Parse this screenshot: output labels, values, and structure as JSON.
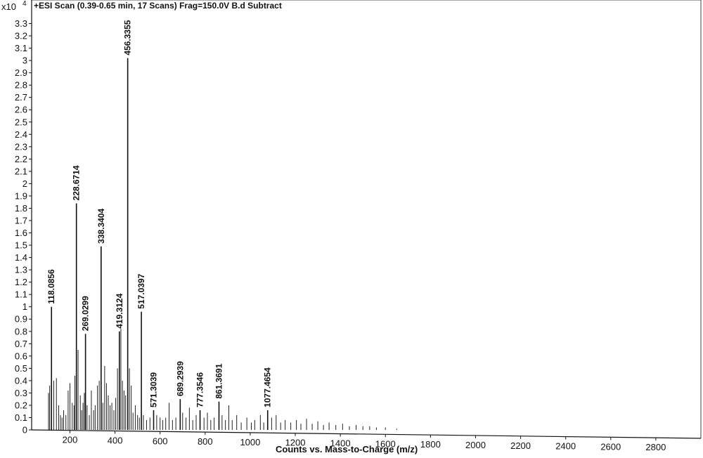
{
  "chart_data": {
    "type": "line",
    "title": "+ESI Scan (0.39-0.65 min, 17 Scans) Frag=150.0V B.d  Subtract",
    "y_multiplier": "x10",
    "y_exponent": "4",
    "xlabel": "Counts vs. Mass-to-Charge (m/z)",
    "ylabel": "",
    "xlim": [
      30,
      3000
    ],
    "ylim": [
      0,
      3.4
    ],
    "x_ticks": [
      200,
      400,
      600,
      800,
      1000,
      1200,
      1400,
      1600,
      1800,
      2000,
      2200,
      2400,
      2600,
      2800
    ],
    "y_ticks": [
      0,
      0.1,
      0.2,
      0.3,
      0.4,
      0.5,
      0.6,
      0.7,
      0.8,
      0.9,
      1,
      1.1,
      1.2,
      1.3,
      1.4,
      1.5,
      1.6,
      1.7,
      1.8,
      1.9,
      2,
      2.1,
      2.2,
      2.3,
      2.4,
      2.5,
      2.6,
      2.7,
      2.8,
      2.9,
      3,
      3.1,
      3.2,
      3.3
    ],
    "grid": false,
    "labeled_peaks": [
      {
        "label": "118.0856",
        "x": 118.0856,
        "y": 1.0
      },
      {
        "label": "228.6714",
        "x": 228.6714,
        "y": 1.84
      },
      {
        "label": "269.0299",
        "x": 269.0299,
        "y": 0.78
      },
      {
        "label": "338.3404",
        "x": 338.3404,
        "y": 1.49
      },
      {
        "label": "419.3124",
        "x": 419.3124,
        "y": 0.8
      },
      {
        "label": "456.3355",
        "x": 456.3355,
        "y": 3.02
      },
      {
        "label": "517.0397",
        "x": 517.0397,
        "y": 0.96
      },
      {
        "label": "571.3039",
        "x": 571.3039,
        "y": 0.16
      },
      {
        "label": "689.2939",
        "x": 689.2939,
        "y": 0.25
      },
      {
        "label": "777.3546",
        "x": 777.3546,
        "y": 0.16
      },
      {
        "label": "861.3691",
        "x": 861.3691,
        "y": 0.23
      },
      {
        "label": "1077.4654",
        "x": 1077.4654,
        "y": 0.16
      }
    ],
    "minor_peaks": [
      {
        "x": 105,
        "y": 0.3
      },
      {
        "x": 110,
        "y": 0.36
      },
      {
        "x": 128,
        "y": 0.4
      },
      {
        "x": 140,
        "y": 0.42
      },
      {
        "x": 150,
        "y": 0.2
      },
      {
        "x": 158,
        "y": 0.12
      },
      {
        "x": 165,
        "y": 0.1
      },
      {
        "x": 172,
        "y": 0.16
      },
      {
        "x": 182,
        "y": 0.12
      },
      {
        "x": 192,
        "y": 0.32
      },
      {
        "x": 200,
        "y": 0.38
      },
      {
        "x": 210,
        "y": 0.22
      },
      {
        "x": 218,
        "y": 0.2
      },
      {
        "x": 222,
        "y": 0.44
      },
      {
        "x": 236,
        "y": 0.65
      },
      {
        "x": 246,
        "y": 0.28
      },
      {
        "x": 252,
        "y": 0.16
      },
      {
        "x": 258,
        "y": 0.22
      },
      {
        "x": 264,
        "y": 0.3
      },
      {
        "x": 276,
        "y": 0.2
      },
      {
        "x": 286,
        "y": 0.12
      },
      {
        "x": 295,
        "y": 0.32
      },
      {
        "x": 305,
        "y": 0.16
      },
      {
        "x": 312,
        "y": 0.2
      },
      {
        "x": 322,
        "y": 0.36
      },
      {
        "x": 330,
        "y": 0.4
      },
      {
        "x": 346,
        "y": 0.22
      },
      {
        "x": 354,
        "y": 0.52
      },
      {
        "x": 362,
        "y": 0.38
      },
      {
        "x": 370,
        "y": 0.28
      },
      {
        "x": 378,
        "y": 0.2
      },
      {
        "x": 386,
        "y": 0.22
      },
      {
        "x": 395,
        "y": 0.16
      },
      {
        "x": 403,
        "y": 0.26
      },
      {
        "x": 411,
        "y": 0.5
      },
      {
        "x": 426,
        "y": 0.82
      },
      {
        "x": 433,
        "y": 0.4
      },
      {
        "x": 440,
        "y": 0.32
      },
      {
        "x": 447,
        "y": 0.28
      },
      {
        "x": 464,
        "y": 0.5
      },
      {
        "x": 472,
        "y": 0.36
      },
      {
        "x": 480,
        "y": 0.14
      },
      {
        "x": 490,
        "y": 0.2
      },
      {
        "x": 500,
        "y": 0.12
      },
      {
        "x": 508,
        "y": 0.1
      },
      {
        "x": 526,
        "y": 0.12
      },
      {
        "x": 540,
        "y": 0.08
      },
      {
        "x": 555,
        "y": 0.1
      },
      {
        "x": 585,
        "y": 0.12
      },
      {
        "x": 600,
        "y": 0.1
      },
      {
        "x": 612,
        "y": 0.08
      },
      {
        "x": 625,
        "y": 0.1
      },
      {
        "x": 640,
        "y": 0.22
      },
      {
        "x": 655,
        "y": 0.08
      },
      {
        "x": 670,
        "y": 0.1
      },
      {
        "x": 700,
        "y": 0.14
      },
      {
        "x": 715,
        "y": 0.1
      },
      {
        "x": 730,
        "y": 0.18
      },
      {
        "x": 745,
        "y": 0.08
      },
      {
        "x": 760,
        "y": 0.12
      },
      {
        "x": 795,
        "y": 0.1
      },
      {
        "x": 810,
        "y": 0.14
      },
      {
        "x": 825,
        "y": 0.08
      },
      {
        "x": 840,
        "y": 0.1
      },
      {
        "x": 875,
        "y": 0.12
      },
      {
        "x": 890,
        "y": 0.08
      },
      {
        "x": 905,
        "y": 0.2
      },
      {
        "x": 920,
        "y": 0.08
      },
      {
        "x": 940,
        "y": 0.12
      },
      {
        "x": 960,
        "y": 0.06
      },
      {
        "x": 985,
        "y": 0.1
      },
      {
        "x": 1005,
        "y": 0.06
      },
      {
        "x": 1020,
        "y": 0.08
      },
      {
        "x": 1045,
        "y": 0.12
      },
      {
        "x": 1060,
        "y": 0.06
      },
      {
        "x": 1095,
        "y": 0.1
      },
      {
        "x": 1115,
        "y": 0.12
      },
      {
        "x": 1135,
        "y": 0.06
      },
      {
        "x": 1155,
        "y": 0.08
      },
      {
        "x": 1180,
        "y": 0.06
      },
      {
        "x": 1205,
        "y": 0.08
      },
      {
        "x": 1225,
        "y": 0.05
      },
      {
        "x": 1250,
        "y": 0.09
      },
      {
        "x": 1275,
        "y": 0.05
      },
      {
        "x": 1300,
        "y": 0.07
      },
      {
        "x": 1325,
        "y": 0.04
      },
      {
        "x": 1350,
        "y": 0.06
      },
      {
        "x": 1380,
        "y": 0.04
      },
      {
        "x": 1410,
        "y": 0.05
      },
      {
        "x": 1440,
        "y": 0.03
      },
      {
        "x": 1470,
        "y": 0.04
      },
      {
        "x": 1500,
        "y": 0.03
      },
      {
        "x": 1530,
        "y": 0.03
      },
      {
        "x": 1560,
        "y": 0.02
      },
      {
        "x": 1600,
        "y": 0.02
      },
      {
        "x": 1650,
        "y": 0.01
      }
    ]
  }
}
